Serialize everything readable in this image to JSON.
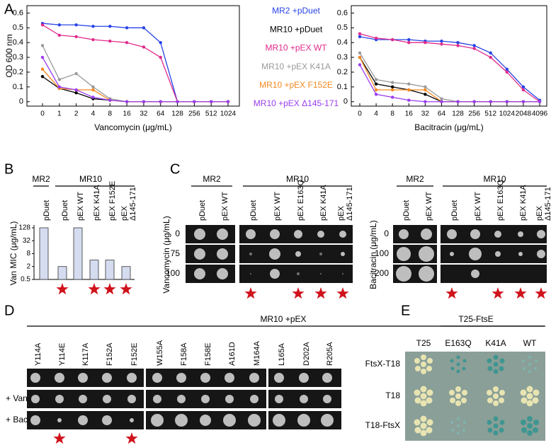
{
  "panel_labels": [
    "A",
    "B",
    "C",
    "D",
    "E"
  ],
  "chart_data": [
    {
      "type": "line",
      "x_label": "Vancomycin (μg/mL)",
      "y_label": "OD 600 nm",
      "categories": [
        "0",
        "1",
        "2",
        "4",
        "8",
        "16",
        "32",
        "64",
        "128",
        "256",
        "512",
        "1024"
      ],
      "ylim": [
        -0.03,
        0.65
      ],
      "yticks": [
        0,
        0.1,
        0.2,
        0.3,
        0.4,
        0.5,
        0.6
      ],
      "series": [
        {
          "name": "MR2 +pDuet",
          "color": "#2743e6",
          "values": [
            0.53,
            0.52,
            0.52,
            0.51,
            0.51,
            0.5,
            0.5,
            0.4,
            0.0,
            0.0,
            0.0,
            0.0
          ]
        },
        {
          "name": "MR10 +pDuet",
          "color": "#000000",
          "values": [
            0.17,
            0.09,
            0.06,
            0.02,
            0.01,
            0.0,
            0.0,
            0.0,
            0.0,
            0.0,
            0.0,
            0.0
          ]
        },
        {
          "name": "MR10 +pEX WT",
          "color": "#e02b8c",
          "values": [
            0.52,
            0.45,
            0.44,
            0.42,
            0.41,
            0.4,
            0.37,
            0.3,
            0.0,
            0.0,
            0.0,
            0.0
          ]
        },
        {
          "name": "MR10 +pEX K41A",
          "color": "#9a9a9a",
          "values": [
            0.38,
            0.15,
            0.19,
            0.1,
            0.02,
            0.0,
            0.0,
            0.0,
            0.0,
            0.0,
            0.0,
            0.0
          ]
        },
        {
          "name": "MR10 +pEX F152E",
          "color": "#f5891f",
          "values": [
            0.22,
            0.09,
            0.08,
            0.08,
            0.01,
            0.0,
            0.0,
            0.0,
            0.0,
            0.0,
            0.0,
            0.0
          ]
        },
        {
          "name": "MR10 +pEX Δ145-171",
          "color": "#9a3cf0",
          "values": [
            0.3,
            0.1,
            0.08,
            0.03,
            0.01,
            0.0,
            0.0,
            0.0,
            0.0,
            0.0,
            0.0,
            0.0
          ]
        }
      ]
    },
    {
      "type": "line",
      "x_label": "Bacitracin (μg/mL)",
      "categories": [
        "0",
        "4",
        "8",
        "16",
        "32",
        "64",
        "128",
        "256",
        "512",
        "1024",
        "2048",
        "4096"
      ],
      "ylim": [
        -0.03,
        0.65
      ],
      "yticks": [
        0,
        0.1,
        0.2,
        0.3,
        0.4,
        0.5,
        0.6
      ],
      "series": [
        {
          "color": "#2743e6",
          "values": [
            0.44,
            0.42,
            0.42,
            0.42,
            0.41,
            0.41,
            0.4,
            0.38,
            0.33,
            0.22,
            0.1,
            0.01
          ]
        },
        {
          "color": "#000000",
          "values": [
            0.3,
            0.12,
            0.1,
            0.08,
            0.05,
            0.0,
            0.0,
            0.0,
            0.0,
            0.0,
            0.0,
            0.0
          ]
        },
        {
          "color": "#e02b8c",
          "values": [
            0.46,
            0.43,
            0.42,
            0.4,
            0.4,
            0.39,
            0.38,
            0.36,
            0.3,
            0.2,
            0.08,
            0.0
          ]
        },
        {
          "color": "#9a9a9a",
          "values": [
            0.33,
            0.15,
            0.13,
            0.12,
            0.1,
            0.02,
            0.0,
            0.0,
            0.0,
            0.0,
            0.0,
            0.0
          ]
        },
        {
          "color": "#f5891f",
          "values": [
            0.3,
            0.08,
            0.08,
            0.08,
            0.08,
            0.0,
            0.0,
            0.0,
            0.0,
            0.0,
            0.0,
            0.0
          ]
        },
        {
          "color": "#9a3cf0",
          "values": [
            0.25,
            0.05,
            0.03,
            0.01,
            0.0,
            0.0,
            0.0,
            0.0,
            0.0,
            0.0,
            0.0,
            0.0
          ]
        }
      ]
    },
    {
      "type": "bar",
      "y_label": "Van MIC (μg/mL)",
      "groups": [
        "MR2",
        "MR10"
      ],
      "categories": [
        "pDuet",
        "pDuet",
        "pEX WT",
        "pEX K41A",
        "pEX F152E",
        "pEX\nΔ145-171"
      ],
      "values": [
        128,
        2,
        128,
        4,
        4,
        2
      ],
      "color": "#d5dcf0",
      "log_scale": true,
      "ylim": [
        0.5,
        128
      ],
      "yticks": [
        0.5,
        2,
        8,
        32,
        128
      ]
    }
  ],
  "panel_c": {
    "groups": [
      "MR2",
      "MR10"
    ],
    "columns": [
      "pDuet",
      "pEX WT",
      "pDuet",
      "pEX WT",
      "pEX E163Q",
      "pEX K41A",
      "pEX\nΔ145-171"
    ],
    "vancomycin": {
      "y_label": "Vancomycin (μg/mL)",
      "rows": [
        "0",
        "75",
        "100"
      ]
    },
    "bacitracin": {
      "y_label": "Bacitracin (μg/mL)",
      "rows": [
        "0",
        "100",
        "200"
      ]
    }
  },
  "panel_d": {
    "header": "MR10 +pEX",
    "columns": [
      "Y114A",
      "Y114E",
      "K117A",
      "F152A",
      "F152E",
      "W155A",
      "F158A",
      "F158E",
      "A161D",
      "M164A",
      "L165A",
      "D202A",
      "R205A"
    ],
    "rows": [
      "+ Van",
      "+ Bac"
    ]
  },
  "panel_e": {
    "header": "T25-FtsE",
    "columns": [
      "T25",
      "E163Q",
      "K41A",
      "WT"
    ],
    "rows": [
      "FtsX-T18",
      "T18",
      "T18-FtsX"
    ]
  }
}
